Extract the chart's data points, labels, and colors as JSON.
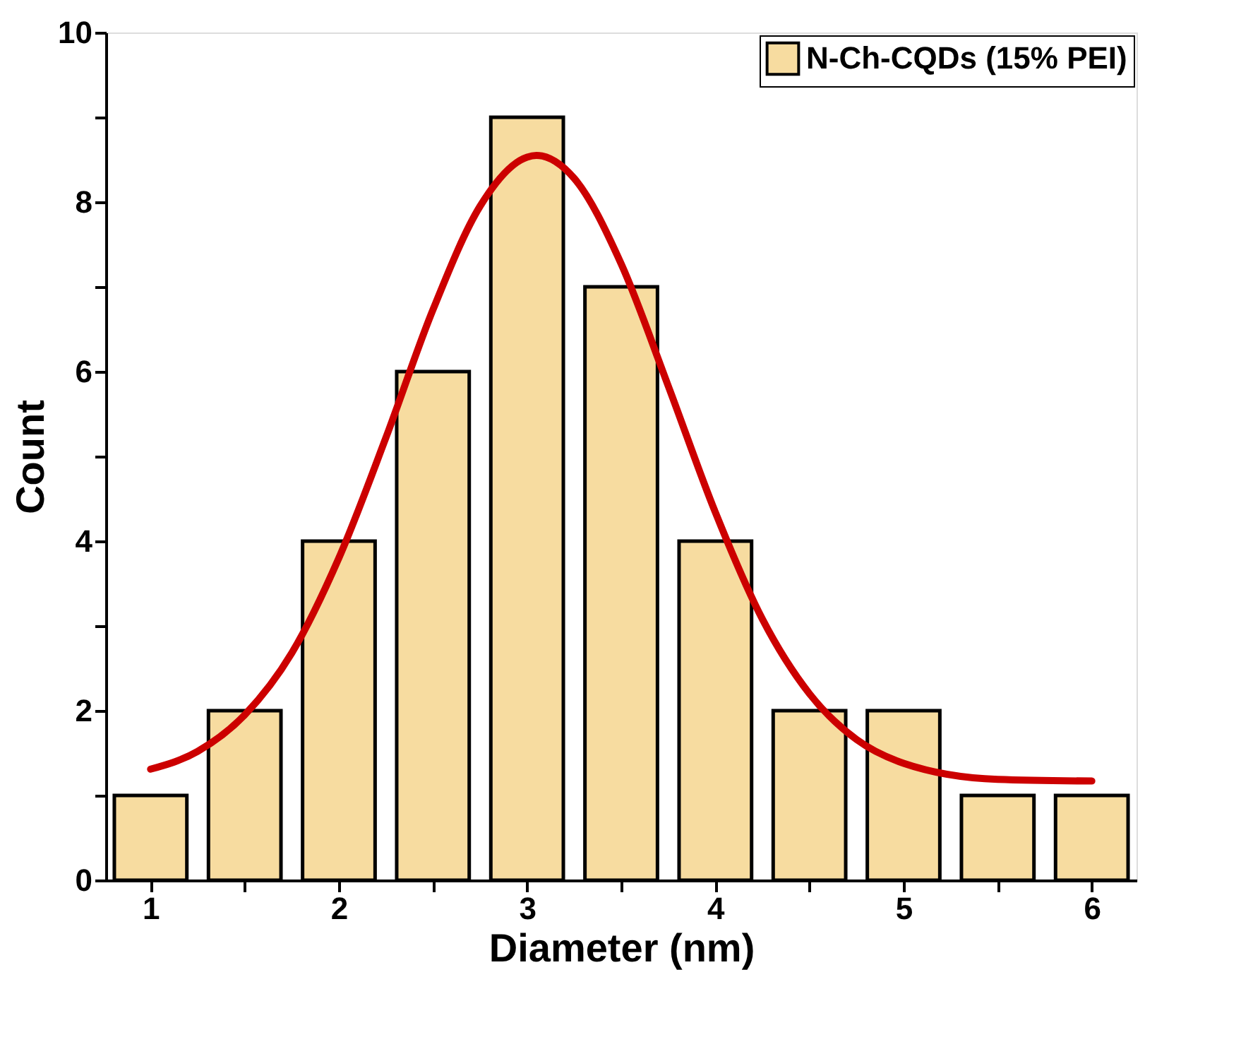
{
  "chart_data": {
    "type": "bar",
    "xlabel": "Diameter (nm)",
    "ylabel": "Count",
    "x": [
      1,
      1.5,
      2,
      2.5,
      3,
      3.5,
      4,
      4.5,
      5,
      5.5,
      6
    ],
    "series": [
      {
        "name": "N-Ch-CQDs (15% PEI)",
        "color": "#f7dca0",
        "values": [
          1,
          2,
          4,
          6,
          9,
          7,
          4,
          2,
          2,
          1,
          1
        ]
      },
      {
        "type": "line",
        "color": "#cc0000",
        "line_style": "solid",
        "marker": "none",
        "x": [
          1,
          1.25,
          1.5,
          1.75,
          2,
          2.25,
          2.5,
          2.75,
          3,
          3.05,
          3.25,
          3.5,
          3.75,
          4,
          4.25,
          4.5,
          4.75,
          5,
          5.5,
          6
        ],
        "values": [
          1.31,
          1.52,
          1.95,
          2.68,
          3.8,
          5.22,
          6.73,
          7.95,
          8.53,
          8.55,
          8.28,
          7.27,
          5.83,
          4.34,
          3.08,
          2.2,
          1.66,
          1.38,
          1.19,
          1.17
        ]
      }
    ],
    "xlim": [
      0.8,
      6.2
    ],
    "xticks": [
      1,
      {
        "value": 1.5,
        "label": null
      },
      2,
      {
        "value": 2.5,
        "label": null
      },
      3,
      {
        "value": 3.5,
        "label": null
      },
      4,
      {
        "value": 4.5,
        "label": null
      },
      5,
      {
        "value": 5.5,
        "label": null
      },
      6
    ],
    "ylim": [
      0,
      10
    ],
    "yticks": [
      0,
      {
        "value": 1,
        "label": null
      },
      2,
      {
        "value": 3,
        "label": null
      },
      4,
      {
        "value": 5,
        "label": null
      },
      6,
      {
        "value": 7,
        "label": null
      },
      8,
      {
        "value": 9,
        "label": null
      },
      10
    ],
    "grid": false,
    "legend": "top right"
  }
}
